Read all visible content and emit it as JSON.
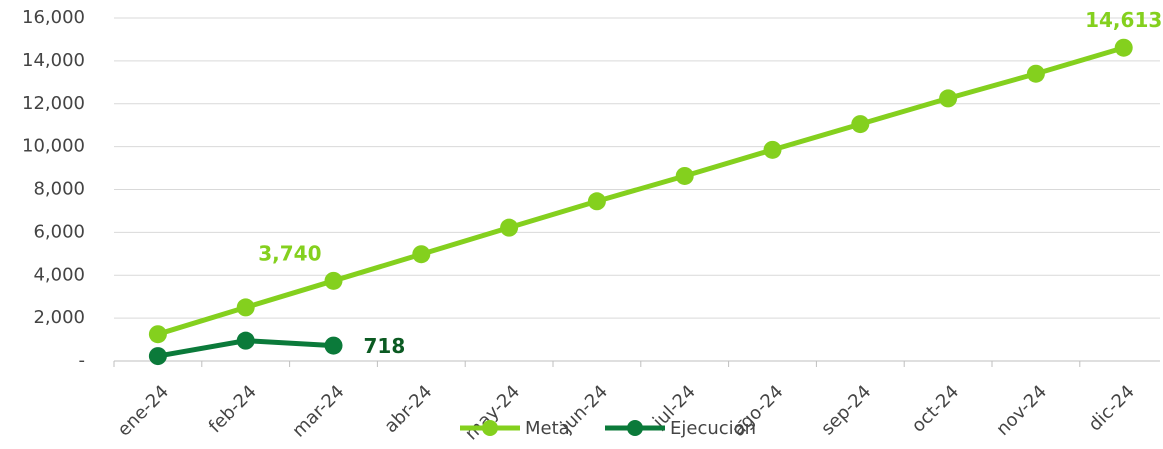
{
  "chart_data": {
    "type": "line",
    "categories": [
      "ene-24",
      "feb-24",
      "mar-24",
      "abr-24",
      "may-24",
      "jun-24",
      "jul-24",
      "ago-24",
      "sep-24",
      "oct-24",
      "nov-24",
      "dic-24"
    ],
    "series": [
      {
        "name": "Meta",
        "color": "#84d01e",
        "values": [
          1250,
          2500,
          3740,
          4980,
          6220,
          7450,
          8630,
          9850,
          11050,
          12250,
          13400,
          14613
        ],
        "value_labels": [
          null,
          null,
          "3,740",
          null,
          null,
          null,
          null,
          null,
          null,
          null,
          null,
          "14,613"
        ]
      },
      {
        "name": "Ejecución",
        "color": "#0b7a3a",
        "values": [
          230,
          950,
          718,
          null,
          null,
          null,
          null,
          null,
          null,
          null,
          null,
          null
        ],
        "value_labels": [
          null,
          null,
          "718",
          null,
          null,
          null,
          null,
          null,
          null,
          null,
          null,
          null
        ]
      }
    ],
    "ylim": [
      0,
      16000
    ],
    "yticks": [
      {
        "value": 0,
        "label": "-"
      },
      {
        "value": 2000,
        "label": "2,000"
      },
      {
        "value": 4000,
        "label": "4,000"
      },
      {
        "value": 6000,
        "label": "6,000"
      },
      {
        "value": 8000,
        "label": "8,000"
      },
      {
        "value": 10000,
        "label": "10,000"
      },
      {
        "value": 12000,
        "label": "12,000"
      },
      {
        "value": 14000,
        "label": "14,000"
      },
      {
        "value": 16000,
        "label": "16,000"
      }
    ],
    "grid": true,
    "legend": "bottom"
  }
}
